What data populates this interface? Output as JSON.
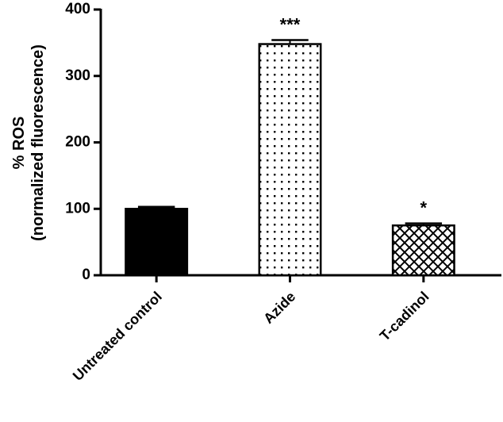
{
  "chart_data": {
    "type": "bar",
    "y_label": "% ROS",
    "y_label_sub": "(normalized fluorescence)",
    "categories": [
      "Untreated control",
      "Azide",
      "T-cadinol"
    ],
    "values": [
      100,
      348,
      75
    ],
    "errors": [
      3,
      6,
      3
    ],
    "patterns": [
      "solid",
      "dots",
      "crosshatch"
    ],
    "color": "#000000",
    "annotations": [
      null,
      "***",
      "*"
    ],
    "ylim": [
      0,
      400
    ],
    "yticks": [
      0,
      100,
      200,
      300,
      400
    ],
    "grid": false
  }
}
